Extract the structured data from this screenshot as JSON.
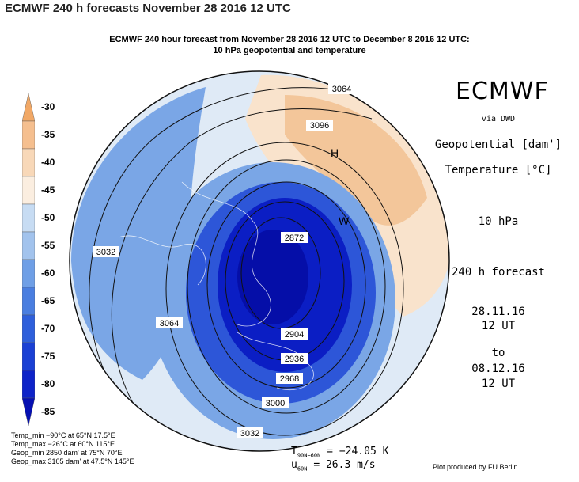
{
  "page_heading": "ECMWF 240 h forecasts November 28 2016 12 UTC",
  "title_line1": "ECMWF 240 hour forecast from November 28 2016 12 UTC to December 8 2016 12 UTC:",
  "title_line2": "10 hPa geopotential and temperature",
  "colorbar": {
    "unit": "°C",
    "levels": [
      "-30",
      "-35",
      "-40",
      "-45",
      "-50",
      "-55",
      "-60",
      "-65",
      "-70",
      "-75",
      "-80",
      "-85"
    ],
    "colors": [
      "#f1a866",
      "#f5bf8f",
      "#f8d8b8",
      "#fbeee0",
      "#c7dcf3",
      "#a2c3ed",
      "#6f9fe6",
      "#4a7ee0",
      "#2e5fdb",
      "#1a40d4",
      "#0e23c8",
      "#0610b2"
    ]
  },
  "map": {
    "field_colors": {
      "warm": "#f3c69a",
      "warm_light": "#f9e3cc",
      "pale": "#dfeaf6",
      "mid_blue": "#7aa6e6",
      "deep_blue": "#2d56d8",
      "core_blue": "#0b1ec4",
      "cold_core": "#050ea8"
    },
    "contour_labels": [
      "3064",
      "3096",
      "3032",
      "3064",
      "2872",
      "2904",
      "2936",
      "2968",
      "3000",
      "3032"
    ],
    "center_labels": [
      "H",
      "W"
    ]
  },
  "right_panel": {
    "brand": "ECMWF",
    "via": "via DWD",
    "geopotential": "Geopotential [dam']",
    "temperature": "Temperature [°C]",
    "level": "10 hPa",
    "forecast": "240 h forecast",
    "from_date": "28.11.16",
    "from_time": "12 UT",
    "to_word": "to",
    "to_date": "08.12.16",
    "to_time": "12 UT"
  },
  "stats": [
    "Temp_min −90°C at 65°N 17.5°E",
    "Temp_max −26°C at 60°N 115°E",
    "Geop_min 2850 dam' at 75°N 70°E",
    "Geop_max 3105 dam' at 47.5°N 145°E"
  ],
  "diagnostics": {
    "t_symbol": "T",
    "t_sub": "90N−60N",
    "t_value": "=  −24.05 K",
    "u_symbol": "u",
    "u_sub": "60N",
    "u_value": "=  26.3 m/s"
  },
  "credit": "Plot produced by FU Berlin"
}
